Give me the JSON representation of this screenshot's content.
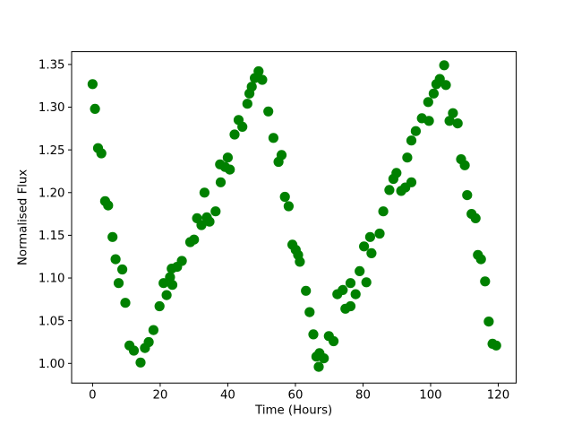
{
  "chart_data": {
    "type": "scatter",
    "title": "",
    "xlabel": "Time (Hours)",
    "ylabel": "Normalised Flux",
    "series_color": "#008000",
    "background_color": "#ffffff",
    "frame_color": "#000000",
    "grid": false,
    "legend": "none",
    "xlim": [
      -6.2,
      125.3
    ],
    "ylim": [
      0.977,
      1.365
    ],
    "xticks": [
      0,
      20,
      40,
      60,
      80,
      100,
      120
    ],
    "yticks": [
      1.0,
      1.05,
      1.1,
      1.15,
      1.2,
      1.25,
      1.3,
      1.35
    ],
    "points": [
      [
        0.0,
        1.327
      ],
      [
        0.7,
        1.298
      ],
      [
        1.6,
        1.252
      ],
      [
        2.6,
        1.246
      ],
      [
        3.7,
        1.19
      ],
      [
        4.6,
        1.185
      ],
      [
        5.9,
        1.148
      ],
      [
        6.8,
        1.122
      ],
      [
        7.7,
        1.094
      ],
      [
        8.8,
        1.11
      ],
      [
        9.7,
        1.071
      ],
      [
        10.9,
        1.021
      ],
      [
        12.2,
        1.015
      ],
      [
        14.2,
        1.001
      ],
      [
        15.5,
        1.018
      ],
      [
        16.6,
        1.025
      ],
      [
        18.0,
        1.039
      ],
      [
        19.8,
        1.067
      ],
      [
        21.0,
        1.094
      ],
      [
        21.9,
        1.08
      ],
      [
        22.9,
        1.101
      ],
      [
        23.4,
        1.111
      ],
      [
        23.6,
        1.092
      ],
      [
        25.0,
        1.113
      ],
      [
        26.4,
        1.12
      ],
      [
        28.9,
        1.142
      ],
      [
        30.0,
        1.145
      ],
      [
        30.9,
        1.17
      ],
      [
        32.2,
        1.162
      ],
      [
        33.1,
        1.2
      ],
      [
        33.8,
        1.171
      ],
      [
        34.6,
        1.166
      ],
      [
        36.4,
        1.178
      ],
      [
        37.7,
        1.233
      ],
      [
        37.9,
        1.212
      ],
      [
        39.2,
        1.23
      ],
      [
        40.0,
        1.241
      ],
      [
        40.6,
        1.227
      ],
      [
        42.0,
        1.268
      ],
      [
        43.2,
        1.285
      ],
      [
        44.3,
        1.277
      ],
      [
        45.8,
        1.304
      ],
      [
        46.4,
        1.316
      ],
      [
        47.1,
        1.324
      ],
      [
        48.0,
        1.334
      ],
      [
        49.1,
        1.342
      ],
      [
        50.2,
        1.332
      ],
      [
        52.0,
        1.295
      ],
      [
        53.5,
        1.264
      ],
      [
        55.0,
        1.236
      ],
      [
        55.9,
        1.244
      ],
      [
        56.9,
        1.195
      ],
      [
        58.0,
        1.184
      ],
      [
        59.1,
        1.139
      ],
      [
        60.1,
        1.133
      ],
      [
        60.8,
        1.127
      ],
      [
        61.3,
        1.119
      ],
      [
        63.1,
        1.085
      ],
      [
        64.2,
        1.06
      ],
      [
        65.3,
        1.034
      ],
      [
        66.2,
        1.008
      ],
      [
        66.9,
        0.996
      ],
      [
        67.1,
        1.012
      ],
      [
        68.4,
        1.006
      ],
      [
        69.9,
        1.032
      ],
      [
        71.3,
        1.026
      ],
      [
        72.4,
        1.081
      ],
      [
        74.0,
        1.086
      ],
      [
        74.8,
        1.064
      ],
      [
        76.3,
        1.067
      ],
      [
        76.3,
        1.094
      ],
      [
        77.8,
        1.081
      ],
      [
        79.0,
        1.108
      ],
      [
        80.3,
        1.137
      ],
      [
        81.0,
        1.095
      ],
      [
        82.1,
        1.148
      ],
      [
        82.5,
        1.129
      ],
      [
        84.9,
        1.152
      ],
      [
        86.0,
        1.178
      ],
      [
        87.8,
        1.203
      ],
      [
        89.0,
        1.216
      ],
      [
        89.9,
        1.223
      ],
      [
        91.3,
        1.202
      ],
      [
        92.5,
        1.206
      ],
      [
        93.1,
        1.241
      ],
      [
        94.3,
        1.212
      ],
      [
        94.3,
        1.261
      ],
      [
        95.6,
        1.272
      ],
      [
        97.4,
        1.287
      ],
      [
        99.3,
        1.306
      ],
      [
        99.5,
        1.284
      ],
      [
        100.9,
        1.316
      ],
      [
        101.7,
        1.327
      ],
      [
        102.7,
        1.333
      ],
      [
        104.0,
        1.349
      ],
      [
        104.5,
        1.326
      ],
      [
        105.6,
        1.284
      ],
      [
        106.6,
        1.293
      ],
      [
        108.0,
        1.281
      ],
      [
        109.0,
        1.239
      ],
      [
        110.1,
        1.232
      ],
      [
        110.8,
        1.197
      ],
      [
        112.1,
        1.175
      ],
      [
        113.3,
        1.17
      ],
      [
        114.0,
        1.127
      ],
      [
        114.9,
        1.122
      ],
      [
        116.1,
        1.096
      ],
      [
        117.2,
        1.049
      ],
      [
        118.3,
        1.023
      ],
      [
        119.4,
        1.021
      ]
    ]
  }
}
